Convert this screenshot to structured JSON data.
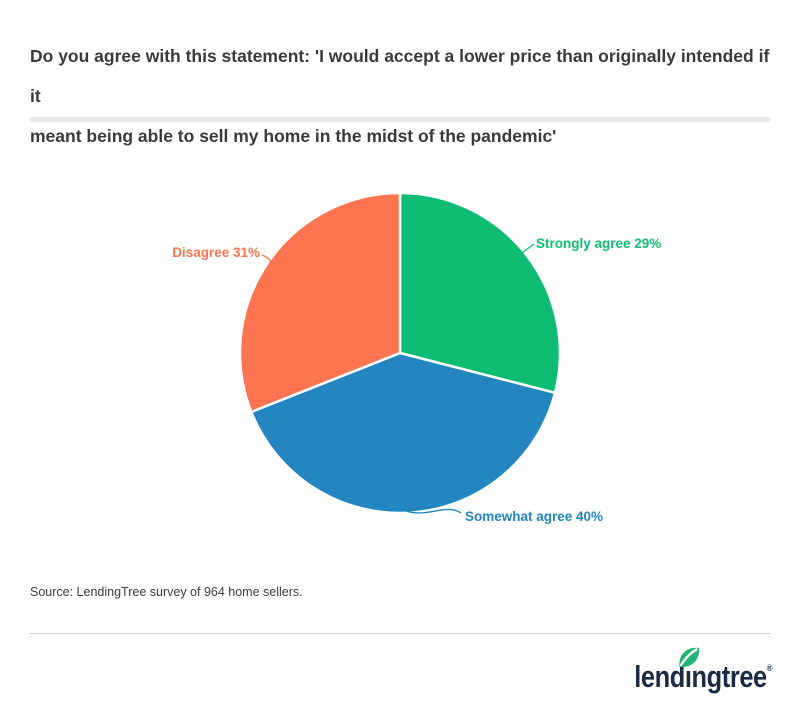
{
  "header": {
    "title_line1": "Do you agree with this statement: 'I would accept a lower price than originally intended if it",
    "title_line2": "meant being able to sell my home in the midst of the pandemic'"
  },
  "chart_data": {
    "type": "pie",
    "title": "Do you agree with this statement: 'I would accept a lower price than originally intended if it meant being able to sell my home in the midst of the pandemic'",
    "start_angle_deg": 0,
    "direction": "clockwise",
    "legend_position": "outside-labels-with-leader-lines",
    "slices": [
      {
        "label": "Strongly agree",
        "value": 29,
        "display": "Strongly agree 29%",
        "color": "#0fbc74"
      },
      {
        "label": "Somewhat agree",
        "value": 40,
        "display": "Somewhat agree 40%",
        "color": "#2386c1"
      },
      {
        "label": "Disagree",
        "value": 31,
        "display": "Disagree 31%",
        "color": "#fd7450"
      }
    ],
    "source": "Source: LendingTree survey of 964 home sellers."
  },
  "footer": {
    "source": "Source: LendingTree survey of 964 home sellers.",
    "logo": {
      "text": "lendingtree",
      "part1": "lend",
      "dotless_i": "ı",
      "part2": "ngtree",
      "registered": "®",
      "navy": "#1b2a44",
      "leaf_green": "#21b573"
    }
  }
}
